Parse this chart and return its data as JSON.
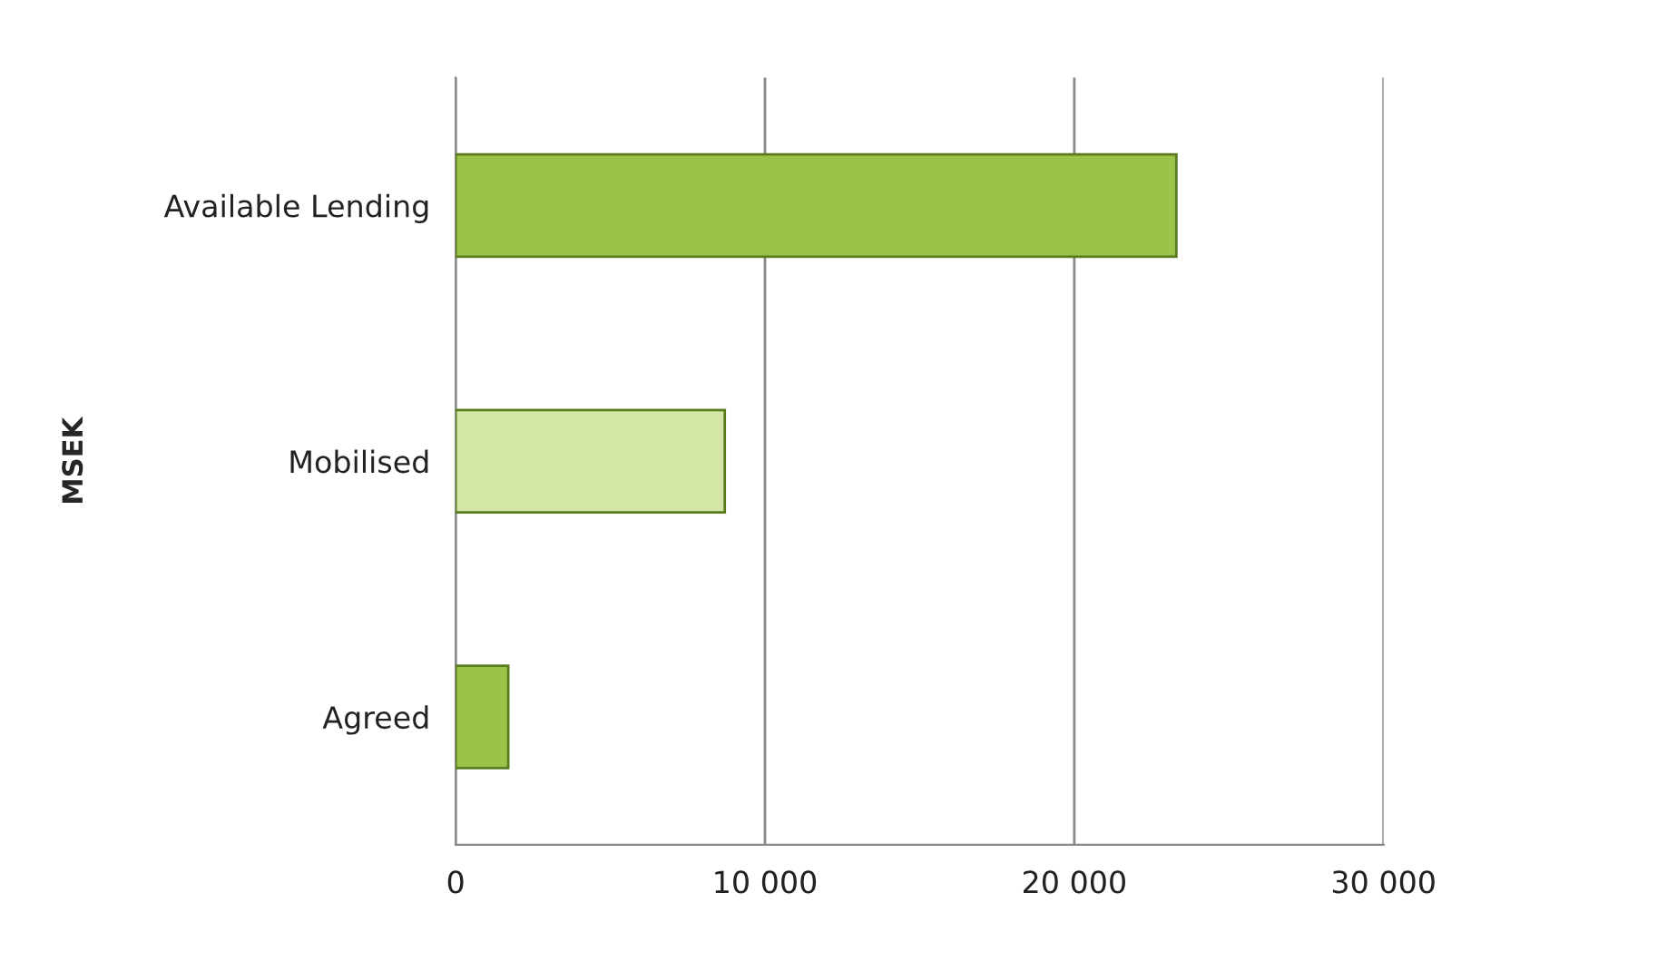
{
  "chart_data": {
    "type": "bar",
    "orientation": "horizontal",
    "ylabel": "MSEK",
    "categories": [
      "Available Lending",
      "Mobilised",
      "Agreed"
    ],
    "values": [
      23300,
      8700,
      1700
    ],
    "colors": [
      "#9bc34a",
      "#d3e6a5",
      "#9bc34a"
    ],
    "xlim": [
      0,
      30000
    ],
    "xticks": [
      {
        "value": 0,
        "label": "0"
      },
      {
        "value": 10000,
        "label": "10 000"
      },
      {
        "value": 20000,
        "label": "20 000"
      },
      {
        "value": 30000,
        "label": "30 000"
      }
    ],
    "grid": "x"
  }
}
